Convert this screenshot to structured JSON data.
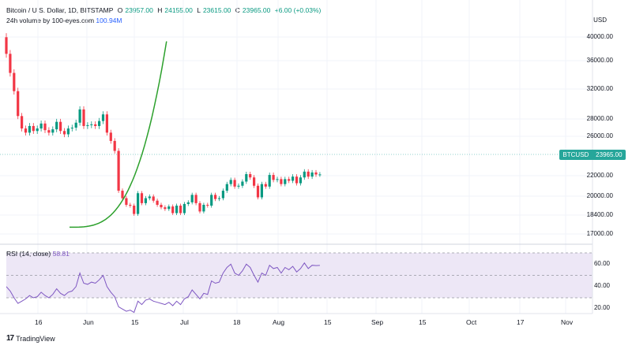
{
  "header": {
    "symbol": "Bitcoin / U.S. Dollar, 1D, BITSTAMP",
    "o_label": "O",
    "o_value": "23957.00",
    "h_label": "H",
    "h_value": "24155.00",
    "l_label": "L",
    "l_value": "23615.00",
    "c_label": "C",
    "c_value": "23965.00",
    "change": "+6.00 (+0.03%)"
  },
  "volume": {
    "label": "24h volume by 100-eyes.com",
    "value": "100.94M"
  },
  "price_axis": {
    "currency": "USD",
    "labels": [
      "40000.00",
      "36000.00",
      "32000.00",
      "28000.00",
      "26000.00",
      "22000.00",
      "20000.00",
      "18400.00",
      "17000.00"
    ]
  },
  "price_tag": {
    "symbol": "BTCUSD",
    "value": "23965.00"
  },
  "rsi": {
    "label": "RSI (14, close)",
    "value": "58.81",
    "axis_labels": [
      "60.00",
      "40.00",
      "20.00"
    ]
  },
  "time_axis": {
    "labels": [
      "16",
      "Jun",
      "15",
      "Jul",
      "18",
      "Aug",
      "15",
      "Sep",
      "15",
      "Oct",
      "17",
      "Nov"
    ]
  },
  "footer": {
    "logo": "17",
    "brand": "TradingView"
  },
  "colors": {
    "up": "#089981",
    "down": "#f23645",
    "curve": "#2ca02c",
    "rsi_line": "#7e57c2",
    "rsi_band": "#ede7f6"
  },
  "chart_data": {
    "type": "candlestick",
    "title": "Bitcoin / U.S. Dollar, 1D, BITSTAMP",
    "ylabel": "USD",
    "ylim": [
      16500,
      41000
    ],
    "x_range": [
      "2022-05-08",
      "2022-11-18"
    ],
    "candles_close": [
      38500,
      36200,
      34000,
      31000,
      29500,
      29000,
      29800,
      29200,
      29500,
      30100,
      29300,
      29000,
      29400,
      30300,
      29200,
      28800,
      29500,
      29600,
      30200,
      31800,
      29800,
      29900,
      30000,
      29800,
      30400,
      31200,
      29000,
      28000,
      26800,
      22000,
      21100,
      20300,
      20200,
      19200,
      21700,
      20500,
      21100,
      21300,
      20800,
      20300,
      20000,
      19800,
      20100,
      19300,
      20200,
      19300,
      20400,
      20600,
      21500,
      20500,
      19500,
      20300,
      20200,
      21500,
      21000,
      21100,
      22000,
      22800,
      23300,
      22500,
      22600,
      23100,
      24000,
      23600,
      22600,
      21200,
      22800,
      22500,
      23900,
      23300,
      23400,
      22800,
      23400,
      23200,
      23700,
      22900,
      23600,
      24300,
      23700,
      24200,
      23957,
      23965
    ],
    "rsi_values": [
      40,
      36,
      30,
      25,
      27,
      29,
      32,
      30,
      31,
      35,
      32,
      30,
      33,
      38,
      34,
      32,
      35,
      36,
      40,
      52,
      43,
      42,
      44,
      43,
      46,
      50,
      40,
      35,
      31,
      22,
      20,
      18,
      19,
      17,
      27,
      24,
      28,
      29,
      27,
      26,
      25,
      24,
      26,
      23,
      27,
      24,
      29,
      31,
      37,
      33,
      29,
      34,
      33,
      45,
      43,
      44,
      52,
      57,
      60,
      52,
      50,
      54,
      60,
      57,
      50,
      44,
      52,
      50,
      59,
      56,
      57,
      52,
      57,
      55,
      58,
      53,
      56,
      61,
      56,
      59,
      58.7,
      58.81
    ],
    "curve": {
      "start": [
        "2022-06-18",
        17600
      ],
      "end": [
        "2022-08-20",
        40000
      ]
    },
    "rsi_levels": [
      70,
      50,
      30
    ]
  }
}
